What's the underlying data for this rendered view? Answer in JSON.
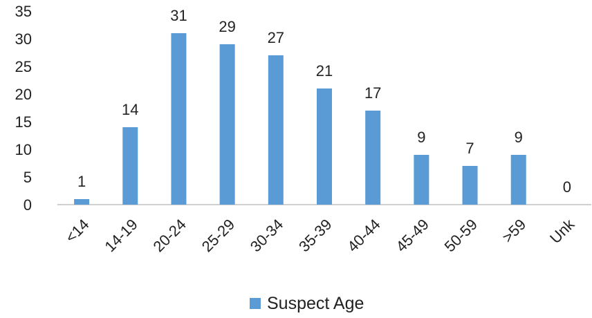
{
  "chart_data": {
    "type": "bar",
    "categories": [
      "<14",
      "14-19",
      "20-24",
      "25-29",
      "30-34",
      "35-39",
      "40-44",
      "45-49",
      "50-59",
      ">59",
      "Unk"
    ],
    "series": [
      {
        "name": "Suspect Age",
        "values": [
          1,
          14,
          31,
          29,
          27,
          21,
          17,
          9,
          7,
          9,
          0
        ],
        "color": "#5b9bd5"
      }
    ],
    "y_ticks": [
      "0",
      "5",
      "10",
      "15",
      "20",
      "25",
      "30",
      "35"
    ],
    "ylim": [
      0,
      35
    ],
    "grid": false,
    "legend_position": "bottom"
  }
}
